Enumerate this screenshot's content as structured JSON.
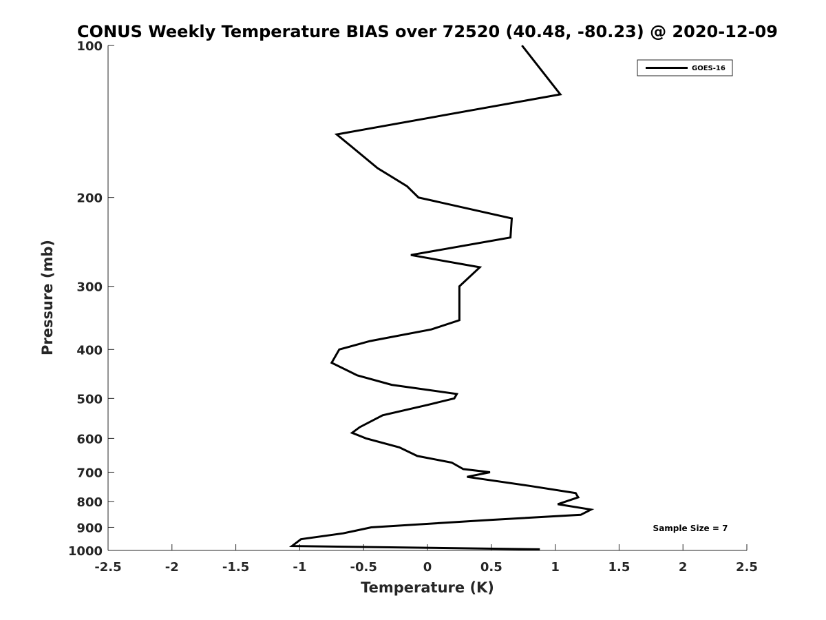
{
  "chart_data": {
    "type": "line",
    "title": "CONUS Weekly Temperature BIAS over 72520 (40.48, -80.23) @ 2020-12-09",
    "xlabel": "Temperature (K)",
    "ylabel": "Pressure (mb)",
    "xlim": [
      -2.5,
      2.5
    ],
    "ylim": [
      100,
      1000
    ],
    "yscale": "log",
    "yreversed": true,
    "xticks": [
      -2.5,
      -2,
      -1.5,
      -1,
      -0.5,
      0,
      0.5,
      1,
      1.5,
      2,
      2.5
    ],
    "xtick_labels": [
      "-2.5",
      "-2",
      "-1.5",
      "-1",
      "-0.5",
      "0",
      "0.5",
      "1",
      "1.5",
      "2",
      "2.5"
    ],
    "yticks": [
      100,
      200,
      300,
      400,
      500,
      600,
      700,
      800,
      900,
      1000
    ],
    "ytick_labels": [
      "100",
      "200",
      "300",
      "400",
      "500",
      "600",
      "700",
      "800",
      "900",
      "1000"
    ],
    "grid": false,
    "legend_position": "top-right",
    "series": [
      {
        "name": "GOES-16",
        "color": "#000000",
        "points": [
          [
            0.74,
            100
          ],
          [
            1.04,
            125
          ],
          [
            -0.71,
            150
          ],
          [
            -0.39,
            175
          ],
          [
            -0.16,
            190
          ],
          [
            -0.07,
            200
          ],
          [
            0.66,
            220
          ],
          [
            0.65,
            240
          ],
          [
            -0.13,
            260
          ],
          [
            0.41,
            275
          ],
          [
            0.25,
            300
          ],
          [
            0.25,
            310
          ],
          [
            0.25,
            350
          ],
          [
            0.03,
            365
          ],
          [
            -0.45,
            385
          ],
          [
            -0.69,
            400
          ],
          [
            -0.75,
            425
          ],
          [
            -0.55,
            450
          ],
          [
            -0.28,
            470
          ],
          [
            0.23,
            490
          ],
          [
            0.21,
            500
          ],
          [
            0.0,
            515
          ],
          [
            -0.35,
            540
          ],
          [
            -0.53,
            570
          ],
          [
            -0.59,
            585
          ],
          [
            -0.48,
            600
          ],
          [
            -0.22,
            625
          ],
          [
            -0.08,
            650
          ],
          [
            0.19,
            670
          ],
          [
            0.28,
            690
          ],
          [
            0.49,
            700
          ],
          [
            0.31,
            715
          ],
          [
            0.8,
            745
          ],
          [
            1.16,
            770
          ],
          [
            1.18,
            785
          ],
          [
            1.02,
            810
          ],
          [
            1.28,
            830
          ],
          [
            1.2,
            850
          ],
          [
            0.49,
            870
          ],
          [
            -0.44,
            900
          ],
          [
            -0.66,
            925
          ],
          [
            -0.99,
            950
          ],
          [
            -1.06,
            980
          ],
          [
            0.88,
            995
          ]
        ]
      }
    ],
    "annotations": [
      "Sample Size = 7"
    ]
  }
}
